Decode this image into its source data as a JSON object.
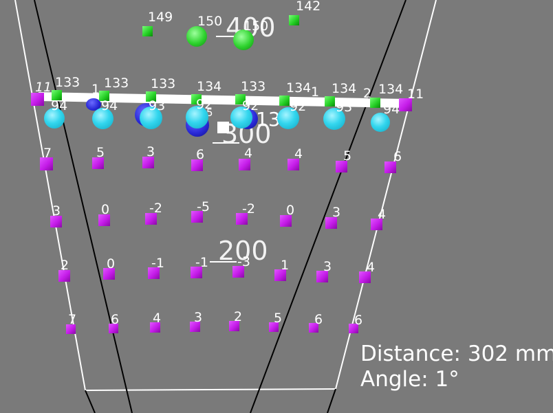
{
  "top_labels": [
    "149",
    "150",
    "142"
  ],
  "top_overlap_label": "150",
  "depth_labels": {
    "d400": "400",
    "d300": "300",
    "d200": "200"
  },
  "edge_labels": {
    "left": "11",
    "right": "11",
    "frag_a": "1",
    "frag_b": "1",
    "frag_c": "2",
    "frag_d": "13",
    "frag_e": "5"
  },
  "green_row_labels": [
    "133",
    "133",
    "133",
    "134",
    "133",
    "134",
    "134",
    "134"
  ],
  "cyan_row_labels": [
    "94",
    "94",
    "93",
    "92",
    "92",
    "92",
    "93",
    "94"
  ],
  "grid_rows": [
    [
      "7",
      "5",
      "3",
      "6",
      "4",
      "4",
      "5",
      "6"
    ],
    [
      "3",
      "0",
      "-2",
      "-5",
      "-2",
      "0",
      "3",
      "4"
    ],
    [
      "2",
      "0",
      "-1",
      "-1",
      "-3",
      "1",
      "3",
      "4"
    ],
    [
      "7",
      "6",
      "4",
      "3",
      "2",
      "5",
      "6",
      "6"
    ]
  ],
  "readout": {
    "distance": "Distance: 302 mm",
    "angle": "Angle: 1°"
  },
  "colors": {
    "background": "#7a7a7a",
    "marker_grid": "#c41be8",
    "marker_top": "#22cc22",
    "sphere_cyan": "#33d6ee",
    "sphere_blue": "#2a2ad8",
    "text": "#ffffff"
  }
}
